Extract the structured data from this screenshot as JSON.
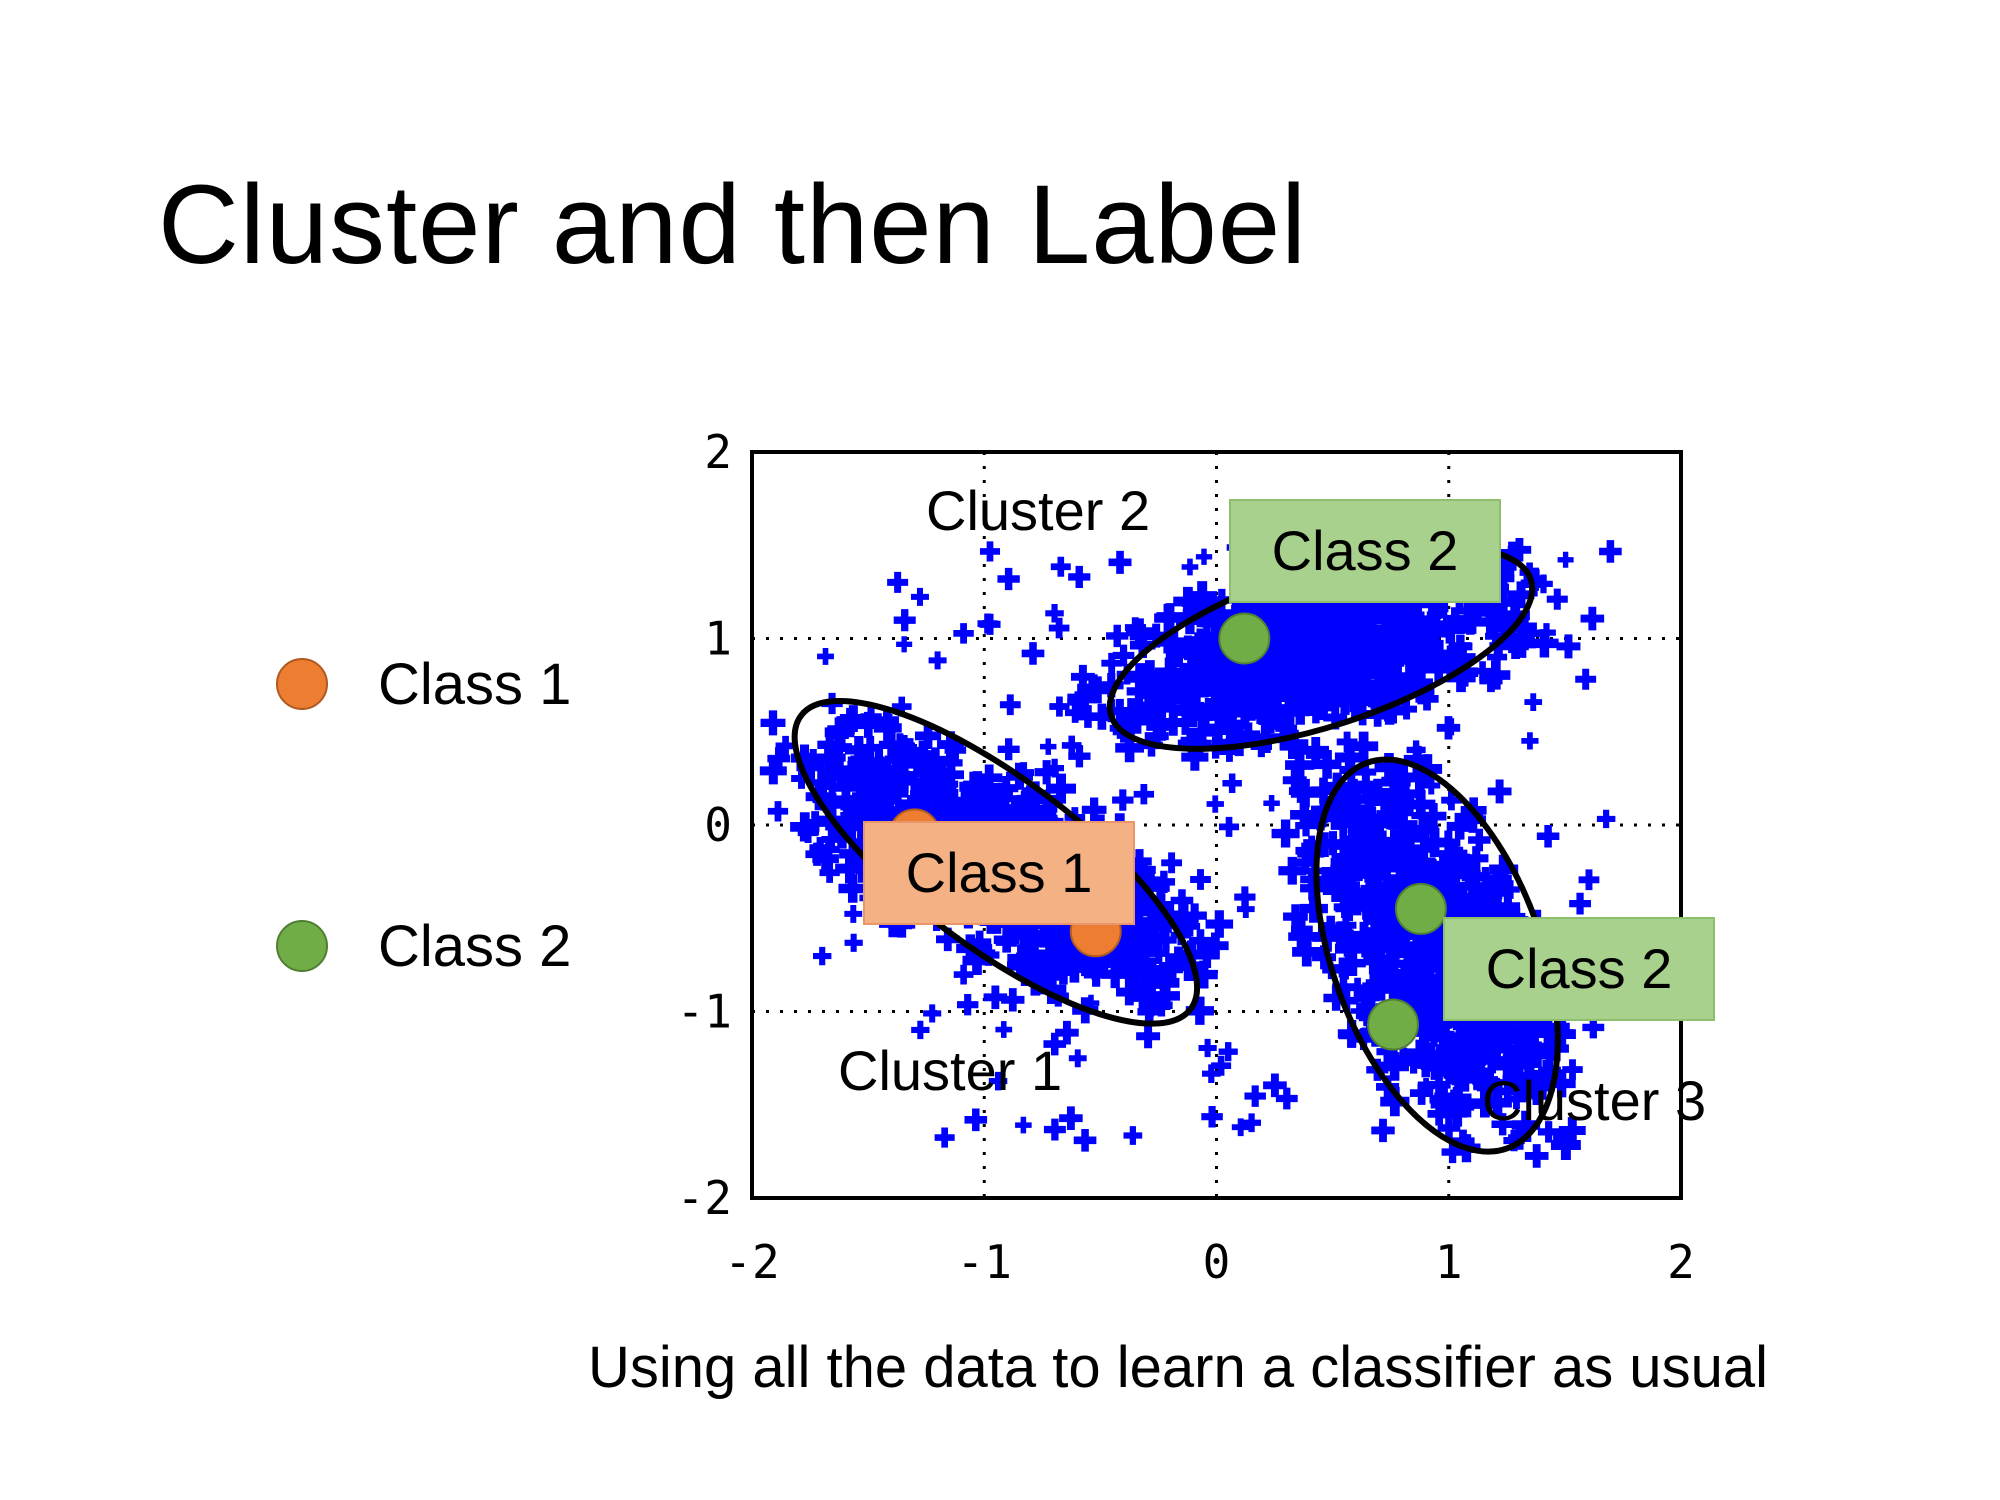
{
  "slide": {
    "title": "Cluster and then Label",
    "caption": "Using all the data to learn a classifier as usual"
  },
  "legend": [
    {
      "label": "Class 1",
      "color": "#ED7D31",
      "border": "#AE5A21"
    },
    {
      "label": "Class 2",
      "color": "#70AD47",
      "border": "#507E32"
    }
  ],
  "chart_data": {
    "type": "scatter",
    "xlim": [
      -2,
      2
    ],
    "ylim": [
      -2,
      2
    ],
    "x_ticks": [
      "-2",
      "-1",
      "0",
      "1",
      "2"
    ],
    "y_ticks": [
      "2",
      "1",
      "0",
      "-1",
      "-2"
    ],
    "grid": true,
    "point_color": "#0000FF",
    "clusters": [
      {
        "label": "Cluster 1",
        "center": [
          -0.95,
          -0.2
        ],
        "rx": 1.05,
        "ry": 0.45,
        "rotation_deg": -37
      },
      {
        "label": "Cluster 2",
        "center": [
          0.45,
          0.95
        ],
        "rx": 0.95,
        "ry": 0.42,
        "rotation_deg": 18
      },
      {
        "label": "Cluster 3",
        "center": [
          0.95,
          -0.7
        ],
        "rx": 0.45,
        "ry": 1.1,
        "rotation_deg": 20
      }
    ],
    "labeled_points": [
      {
        "class": "Class 1",
        "x": -1.3,
        "y": -0.05,
        "color": "#ED7D31"
      },
      {
        "class": "Class 1",
        "x": -0.52,
        "y": -0.57,
        "color": "#ED7D31"
      },
      {
        "class": "Class 2",
        "x": 0.12,
        "y": 1.0,
        "color": "#70AD47"
      },
      {
        "class": "Class 2",
        "x": 0.88,
        "y": -0.45,
        "color": "#70AD47"
      },
      {
        "class": "Class 2",
        "x": 0.76,
        "y": -1.07,
        "color": "#70AD47"
      }
    ],
    "class_boxes": [
      {
        "label": "Class 2",
        "fill": "#A9D18E",
        "border": "#8DBF6C"
      },
      {
        "label": "Class 1",
        "fill": "#F4B183",
        "border": "#E8966A"
      },
      {
        "label": "Class 2",
        "fill": "#A9D18E",
        "border": "#8DBF6C"
      }
    ]
  }
}
